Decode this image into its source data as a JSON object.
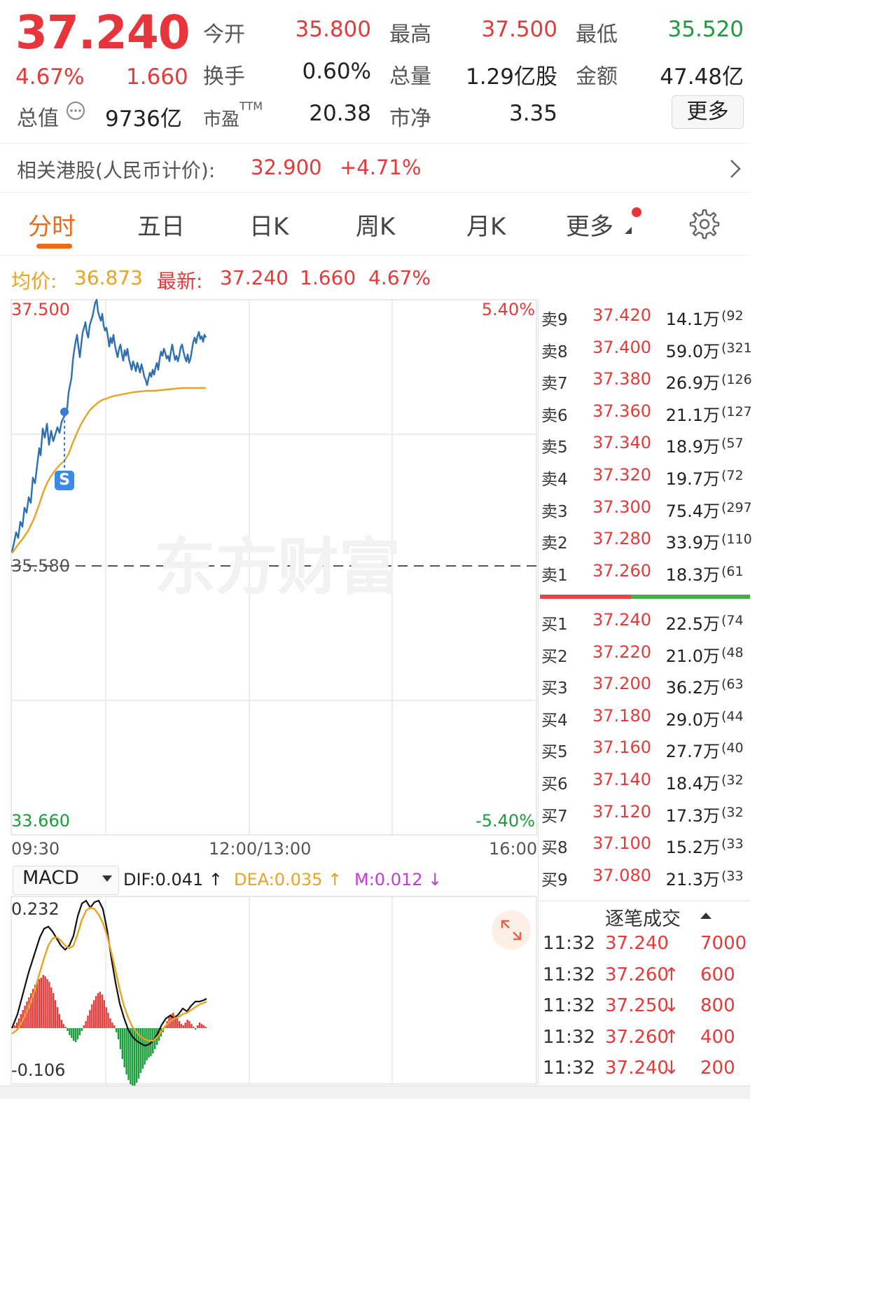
{
  "header": {
    "price": "37.240",
    "change_pct": "4.67%",
    "change_amt": "1.660",
    "open_label": "今开",
    "open_value": "35.800",
    "high_label": "最高",
    "high_value": "37.500",
    "low_label": "最低",
    "low_value": "35.520",
    "turnover_label": "换手",
    "turnover_value": "0.60%",
    "volume_label": "总量",
    "volume_value": "1.29亿股",
    "amount_label": "金额",
    "amount_value": "47.48亿",
    "mktcap_label": "总值",
    "mktcap_value": "9736亿",
    "pe_label": "市盈",
    "pe_sup": "TTM",
    "pe_value": "20.38",
    "pb_label": "市净",
    "pb_value": "3.35",
    "more_label": "更多"
  },
  "hk": {
    "label": "相关港股(人民币计价):",
    "price": "32.900",
    "change": "+4.71%"
  },
  "tabs": [
    "分时",
    "五日",
    "日K",
    "周K",
    "月K",
    "更多"
  ],
  "info_line": {
    "avg_label": "均价:",
    "avg_value": "36.873",
    "latest_label": "最新:",
    "latest_value": "37.240",
    "chg": "1.660",
    "pct": "4.67%"
  },
  "chart": {
    "y_top": "37.500",
    "y_mid": "35.580",
    "y_bottom": "33.660",
    "pct_top": "5.40%",
    "pct_bottom": "-5.40%",
    "x_start": "09:30",
    "x_mid": "12:00/13:00",
    "x_end": "16:00",
    "marker": "S",
    "watermark": "东方财富",
    "colors": {
      "price_line": "#2f6fb0",
      "avg_line": "#e8a323",
      "up": "#e43a3a",
      "down": "#1a9e3a"
    }
  },
  "macd": {
    "selector": "MACD",
    "dif": "DIF:0.041 ↑",
    "dea": "DEA:0.035 ↑",
    "m": "M:0.012 ↓",
    "y_top": "0.232",
    "y_bottom": "-0.106"
  },
  "order_book": {
    "asks": [
      {
        "label": "卖9",
        "price": "37.420",
        "vol": "14.1万",
        "cnt": "(92"
      },
      {
        "label": "卖8",
        "price": "37.400",
        "vol": "59.0万",
        "cnt": "(321"
      },
      {
        "label": "卖7",
        "price": "37.380",
        "vol": "26.9万",
        "cnt": "(126"
      },
      {
        "label": "卖6",
        "price": "37.360",
        "vol": "21.1万",
        "cnt": "(127"
      },
      {
        "label": "卖5",
        "price": "37.340",
        "vol": "18.9万",
        "cnt": "(57"
      },
      {
        "label": "卖4",
        "price": "37.320",
        "vol": "19.7万",
        "cnt": "(72"
      },
      {
        "label": "卖3",
        "price": "37.300",
        "vol": "75.4万",
        "cnt": "(297"
      },
      {
        "label": "卖2",
        "price": "37.280",
        "vol": "33.9万",
        "cnt": "(110"
      },
      {
        "label": "卖1",
        "price": "37.260",
        "vol": "18.3万",
        "cnt": "(61"
      }
    ],
    "bids": [
      {
        "label": "买1",
        "price": "37.240",
        "vol": "22.5万",
        "cnt": "(74"
      },
      {
        "label": "买2",
        "price": "37.220",
        "vol": "21.0万",
        "cnt": "(48"
      },
      {
        "label": "买3",
        "price": "37.200",
        "vol": "36.2万",
        "cnt": "(63"
      },
      {
        "label": "买4",
        "price": "37.180",
        "vol": "29.0万",
        "cnt": "(44"
      },
      {
        "label": "买5",
        "price": "37.160",
        "vol": "27.7万",
        "cnt": "(40"
      },
      {
        "label": "买6",
        "price": "37.140",
        "vol": "18.4万",
        "cnt": "(32"
      },
      {
        "label": "买7",
        "price": "37.120",
        "vol": "17.3万",
        "cnt": "(32"
      },
      {
        "label": "买8",
        "price": "37.100",
        "vol": "15.2万",
        "cnt": "(33"
      },
      {
        "label": "买9",
        "price": "37.080",
        "vol": "21.3万",
        "cnt": "(33"
      }
    ]
  },
  "ticks": {
    "title": "逐笔成交",
    "rows": [
      {
        "time": "11:32",
        "price": "37.240",
        "arrow": "",
        "vol": "7000"
      },
      {
        "time": "11:32",
        "price": "37.260",
        "arrow": "↑",
        "vol": "600"
      },
      {
        "time": "11:32",
        "price": "37.250",
        "arrow": "↓",
        "vol": "800"
      },
      {
        "time": "11:32",
        "price": "37.260",
        "arrow": "↑",
        "vol": "400"
      },
      {
        "time": "11:32",
        "price": "37.240",
        "arrow": "↓",
        "vol": "200"
      }
    ]
  }
}
